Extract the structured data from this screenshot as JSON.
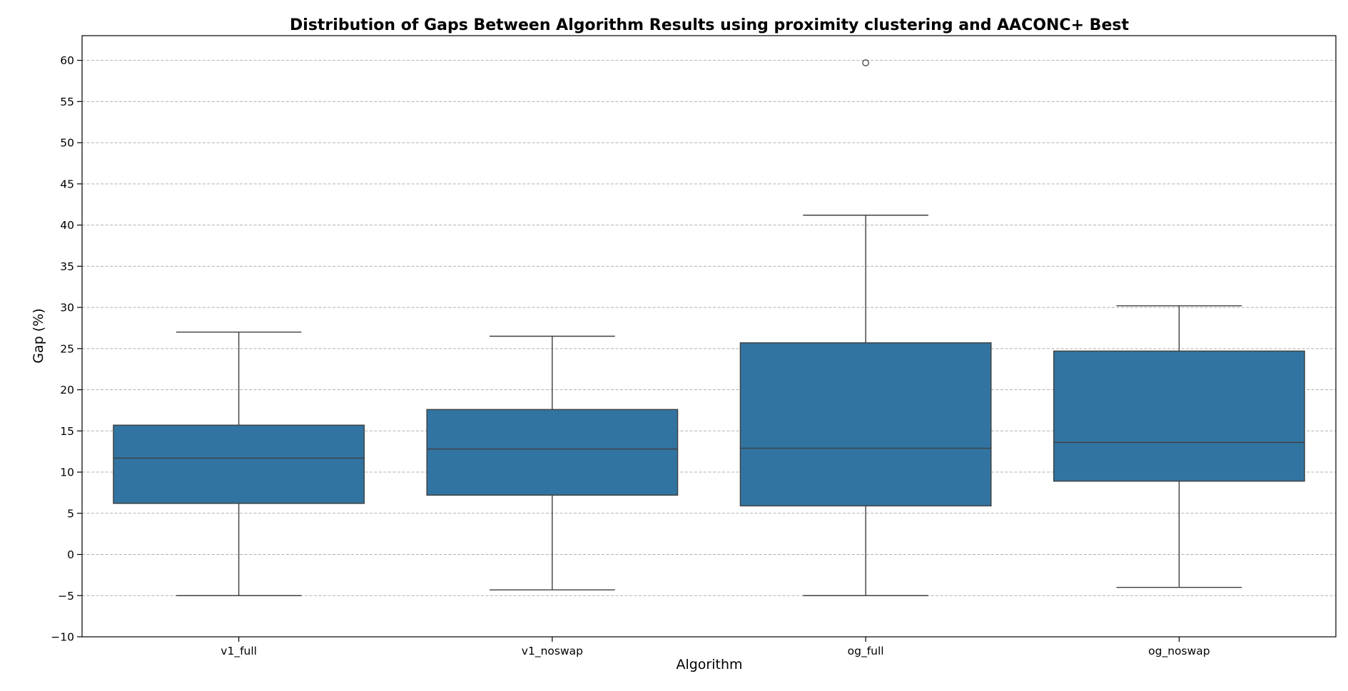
{
  "chart_data": {
    "type": "box",
    "title": "Distribution of Gaps Between Algorithm Results using proximity clustering and AACONC+ Best",
    "xlabel": "Algorithm",
    "ylabel": "Gap (%)",
    "ylim": [
      -10,
      63
    ],
    "yticks": [
      -10,
      -5,
      0,
      5,
      10,
      15,
      20,
      25,
      30,
      35,
      40,
      45,
      50,
      55,
      60
    ],
    "ytick_labels": [
      "−10",
      "−5",
      "0",
      "5",
      "10",
      "15",
      "20",
      "25",
      "30",
      "35",
      "40",
      "45",
      "50",
      "55",
      "60"
    ],
    "grid": "y-dashed",
    "box_color": "#3274a1",
    "categories": [
      "v1_full",
      "v1_noswap",
      "og_full",
      "og_noswap"
    ],
    "boxes": [
      {
        "category": "v1_full",
        "whislo": -5.0,
        "q1": 6.2,
        "median": 11.7,
        "q3": 15.7,
        "whishi": 27.0,
        "fliers": []
      },
      {
        "category": "v1_noswap",
        "whislo": -4.3,
        "q1": 7.2,
        "median": 12.8,
        "q3": 17.6,
        "whishi": 26.5,
        "fliers": []
      },
      {
        "category": "og_full",
        "whislo": -5.0,
        "q1": 5.9,
        "median": 12.9,
        "q3": 25.7,
        "whishi": 41.2,
        "fliers": [
          59.7
        ]
      },
      {
        "category": "og_noswap",
        "whislo": -4.0,
        "q1": 8.9,
        "median": 13.6,
        "q3": 24.7,
        "whishi": 30.2,
        "fliers": []
      }
    ]
  }
}
